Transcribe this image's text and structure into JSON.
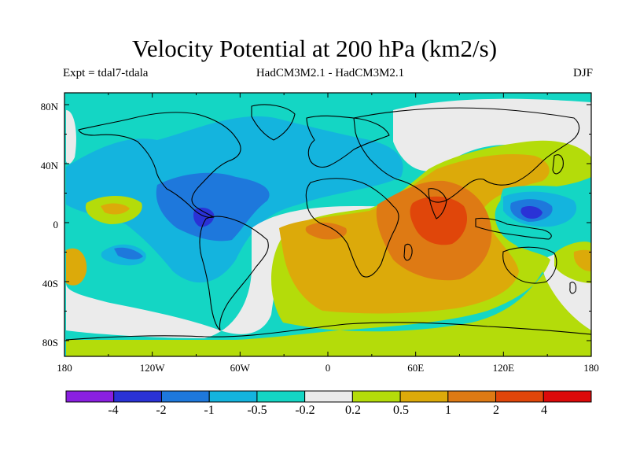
{
  "title": "Velocity Potential at 200 hPa (km2/s)",
  "subtitle_left": "Expt = tdal7-tdala",
  "subtitle_center": "HadCM3M2.1 - HadCM3M2.1",
  "subtitle_right": "DJF",
  "lat_labels": [
    "80N",
    "40N",
    "0",
    "40S",
    "80S"
  ],
  "lon_labels": [
    "180",
    "120W",
    "60W",
    "0",
    "60E",
    "120E",
    "180"
  ],
  "colorbar": {
    "colors": [
      "#8a1fe0",
      "#2a32d6",
      "#1e78dc",
      "#14b4de",
      "#14d6c4",
      "#ebebeb",
      "#b4dc0a",
      "#dcaa0a",
      "#de7a14",
      "#e0460a",
      "#dc0a0a"
    ],
    "labels": [
      "-4",
      "-2",
      "-1",
      "-0.5",
      "-0.2",
      "0.2",
      "0.5",
      "1",
      "2",
      "4"
    ]
  },
  "map_background": "#14d6c4"
}
